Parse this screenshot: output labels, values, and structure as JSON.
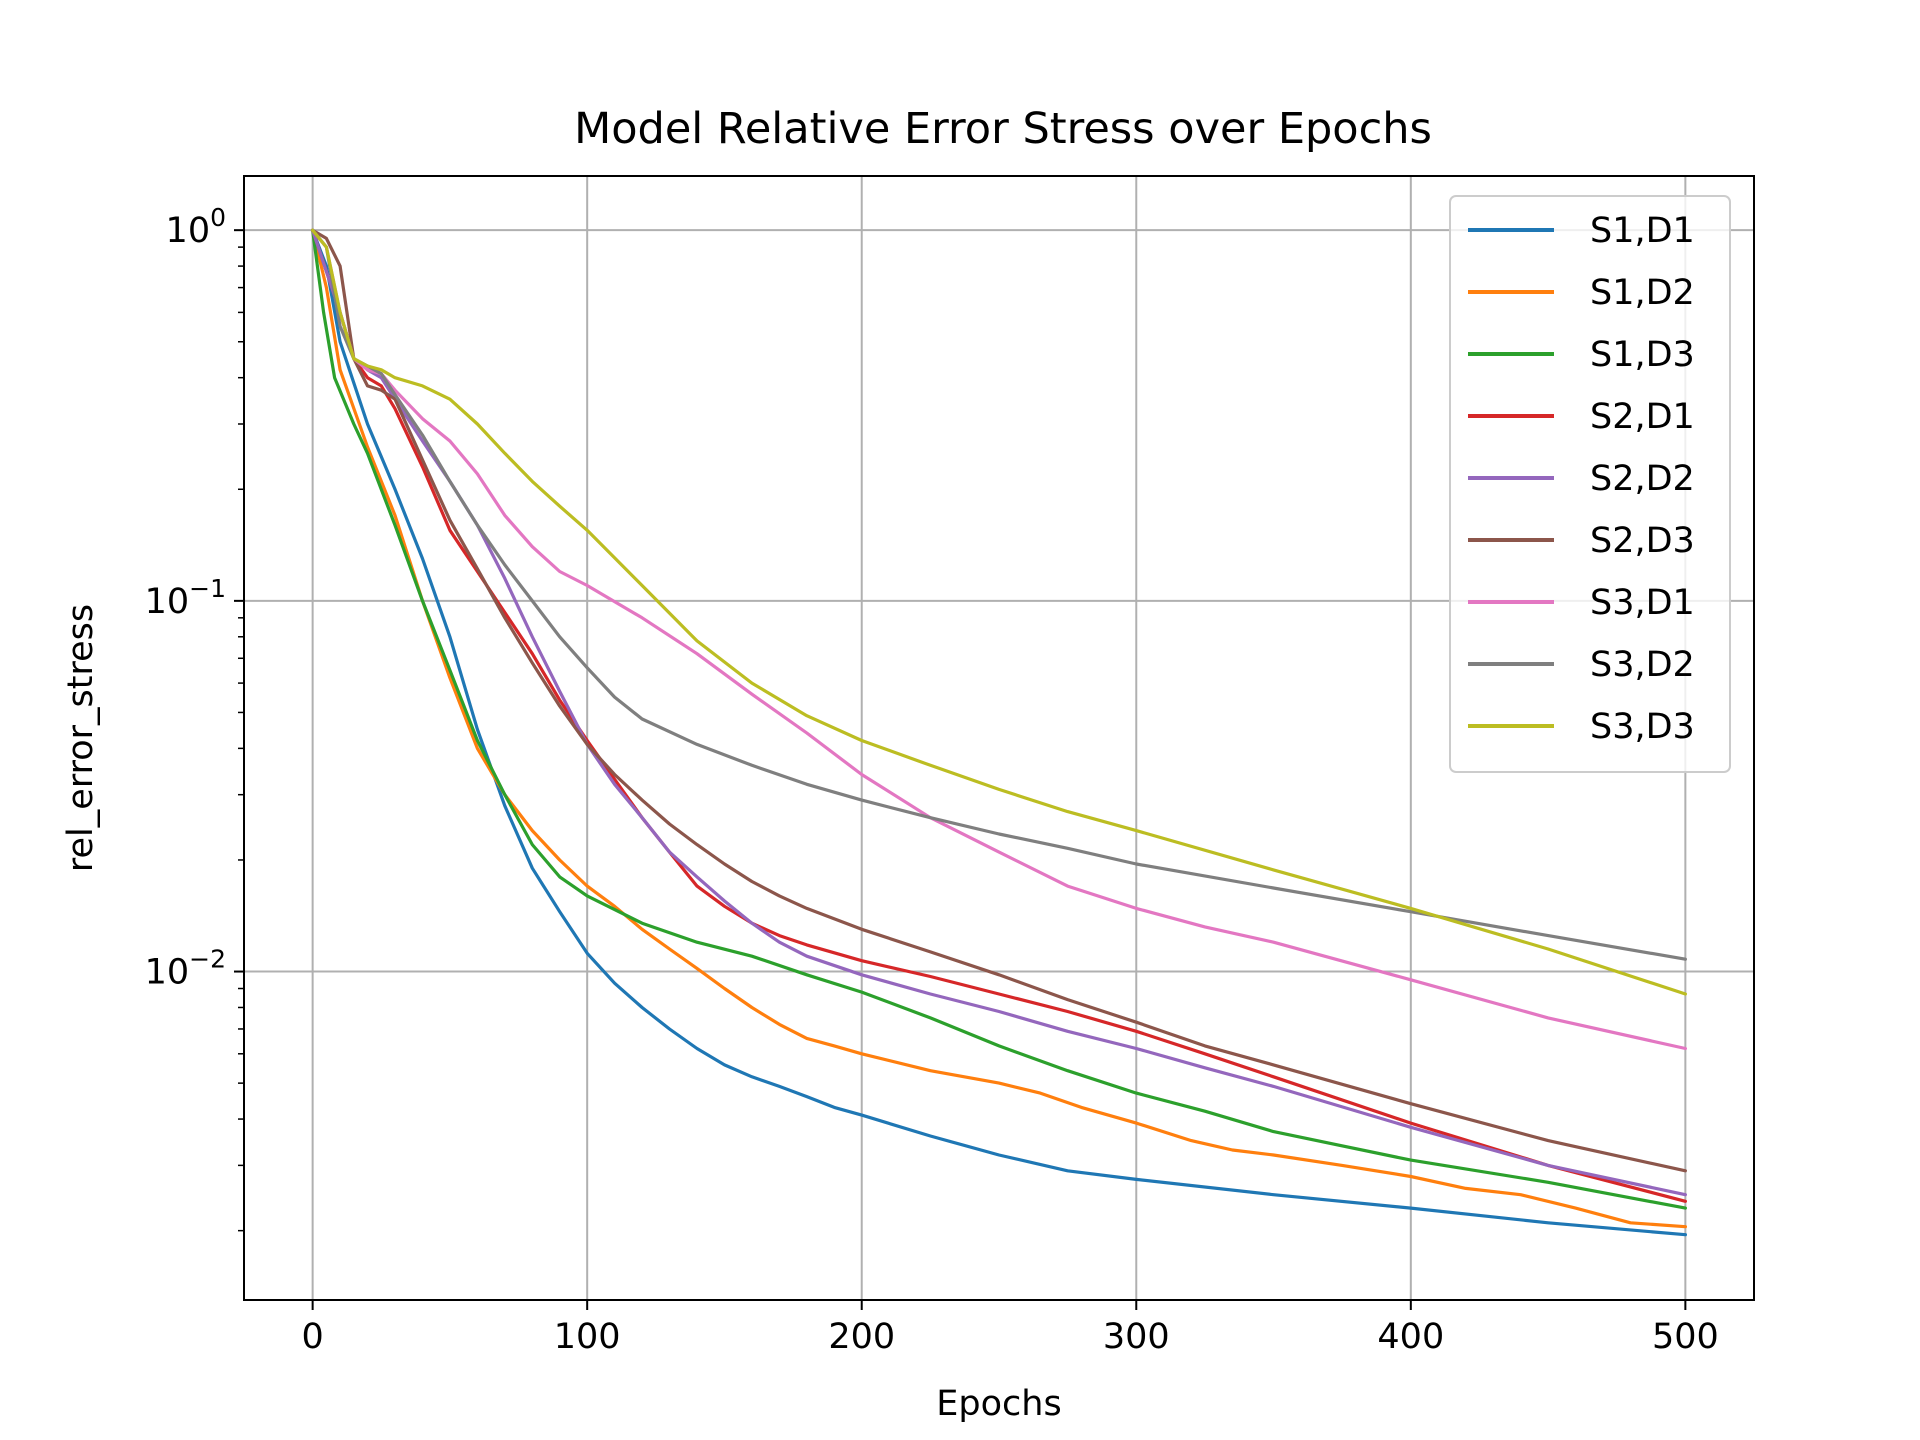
{
  "chart_data": {
    "type": "line",
    "title": "Model Relative Error Stress over Epochs",
    "xlabel": "Epochs",
    "ylabel": "rel_error_stress",
    "xlim": [
      -25,
      525
    ],
    "ylim": [
      0.0013,
      1.4
    ],
    "yscale": "log",
    "xticks": [
      0,
      100,
      200,
      300,
      400,
      500
    ],
    "xtick_labels": [
      "0",
      "100",
      "200",
      "300",
      "400",
      "500"
    ],
    "yticks": [
      {
        "value": 1,
        "base": "10",
        "exp": "0"
      },
      {
        "value": 0.1,
        "base": "10",
        "exp": "−1"
      },
      {
        "value": 0.01,
        "base": "10",
        "exp": "−2"
      }
    ],
    "grid": true,
    "legend_position": "top-right",
    "series": [
      {
        "name": "S1,D1",
        "color": "#1f77b4",
        "points": [
          [
            0,
            1
          ],
          [
            5,
            0.8
          ],
          [
            10,
            0.5
          ],
          [
            20,
            0.3
          ],
          [
            30,
            0.2
          ],
          [
            40,
            0.13
          ],
          [
            50,
            0.08
          ],
          [
            60,
            0.045
          ],
          [
            70,
            0.028
          ],
          [
            80,
            0.019
          ],
          [
            90,
            0.0145
          ],
          [
            100,
            0.0112
          ],
          [
            110,
            0.0093
          ],
          [
            120,
            0.008
          ],
          [
            130,
            0.007
          ],
          [
            140,
            0.0062
          ],
          [
            150,
            0.0056
          ],
          [
            160,
            0.0052
          ],
          [
            170,
            0.0049
          ],
          [
            180,
            0.0046
          ],
          [
            190,
            0.0043
          ],
          [
            200,
            0.0041
          ],
          [
            225,
            0.0036
          ],
          [
            250,
            0.0032
          ],
          [
            275,
            0.0029
          ],
          [
            300,
            0.00275
          ],
          [
            350,
            0.0025
          ],
          [
            400,
            0.0023
          ],
          [
            450,
            0.0021
          ],
          [
            500,
            0.00195
          ]
        ]
      },
      {
        "name": "S1,D2",
        "color": "#ff7f0e",
        "points": [
          [
            0,
            1
          ],
          [
            5,
            0.7
          ],
          [
            10,
            0.42
          ],
          [
            20,
            0.26
          ],
          [
            30,
            0.17
          ],
          [
            40,
            0.1
          ],
          [
            50,
            0.062
          ],
          [
            60,
            0.04
          ],
          [
            70,
            0.03
          ],
          [
            80,
            0.024
          ],
          [
            90,
            0.02
          ],
          [
            100,
            0.017
          ],
          [
            110,
            0.015
          ],
          [
            120,
            0.013
          ],
          [
            130,
            0.0115
          ],
          [
            140,
            0.0102
          ],
          [
            150,
            0.009
          ],
          [
            160,
            0.008
          ],
          [
            170,
            0.0072
          ],
          [
            180,
            0.0066
          ],
          [
            190,
            0.0063
          ],
          [
            200,
            0.006
          ],
          [
            225,
            0.0054
          ],
          [
            250,
            0.005
          ],
          [
            265,
            0.0047
          ],
          [
            280,
            0.0043
          ],
          [
            300,
            0.0039
          ],
          [
            320,
            0.0035
          ],
          [
            335,
            0.0033
          ],
          [
            350,
            0.0032
          ],
          [
            375,
            0.003
          ],
          [
            400,
            0.0028
          ],
          [
            420,
            0.0026
          ],
          [
            440,
            0.0025
          ],
          [
            460,
            0.0023
          ],
          [
            480,
            0.0021
          ],
          [
            500,
            0.00205
          ]
        ]
      },
      {
        "name": "S1,D3",
        "color": "#2ca02c",
        "points": [
          [
            0,
            1
          ],
          [
            4,
            0.6
          ],
          [
            8,
            0.4
          ],
          [
            15,
            0.3
          ],
          [
            20,
            0.25
          ],
          [
            30,
            0.16
          ],
          [
            40,
            0.1
          ],
          [
            50,
            0.065
          ],
          [
            60,
            0.042
          ],
          [
            70,
            0.03
          ],
          [
            80,
            0.022
          ],
          [
            90,
            0.018
          ],
          [
            100,
            0.016
          ],
          [
            120,
            0.0135
          ],
          [
            140,
            0.012
          ],
          [
            160,
            0.011
          ],
          [
            180,
            0.0098
          ],
          [
            200,
            0.0088
          ],
          [
            225,
            0.0075
          ],
          [
            250,
            0.0063
          ],
          [
            275,
            0.0054
          ],
          [
            300,
            0.0047
          ],
          [
            325,
            0.0042
          ],
          [
            350,
            0.0037
          ],
          [
            400,
            0.0031
          ],
          [
            450,
            0.0027
          ],
          [
            500,
            0.0023
          ]
        ]
      },
      {
        "name": "S2,D1",
        "color": "#d62728",
        "points": [
          [
            0,
            1
          ],
          [
            10,
            0.6
          ],
          [
            15,
            0.45
          ],
          [
            20,
            0.4
          ],
          [
            25,
            0.38
          ],
          [
            30,
            0.33
          ],
          [
            40,
            0.23
          ],
          [
            50,
            0.155
          ],
          [
            60,
            0.12
          ],
          [
            70,
            0.093
          ],
          [
            80,
            0.072
          ],
          [
            90,
            0.054
          ],
          [
            100,
            0.042
          ],
          [
            110,
            0.033
          ],
          [
            120,
            0.026
          ],
          [
            130,
            0.021
          ],
          [
            140,
            0.017
          ],
          [
            150,
            0.015
          ],
          [
            160,
            0.0135
          ],
          [
            170,
            0.0125
          ],
          [
            180,
            0.0118
          ],
          [
            200,
            0.0107
          ],
          [
            225,
            0.0097
          ],
          [
            250,
            0.0087
          ],
          [
            275,
            0.0078
          ],
          [
            300,
            0.0069
          ],
          [
            325,
            0.006
          ],
          [
            350,
            0.0052
          ],
          [
            400,
            0.0039
          ],
          [
            450,
            0.003
          ],
          [
            500,
            0.0024
          ]
        ]
      },
      {
        "name": "S2,D2",
        "color": "#9467bd",
        "points": [
          [
            0,
            1
          ],
          [
            10,
            0.6
          ],
          [
            15,
            0.45
          ],
          [
            20,
            0.42
          ],
          [
            25,
            0.4
          ],
          [
            30,
            0.35
          ],
          [
            40,
            0.27
          ],
          [
            50,
            0.21
          ],
          [
            60,
            0.16
          ],
          [
            70,
            0.115
          ],
          [
            80,
            0.08
          ],
          [
            90,
            0.057
          ],
          [
            100,
            0.041
          ],
          [
            110,
            0.032
          ],
          [
            120,
            0.026
          ],
          [
            130,
            0.021
          ],
          [
            140,
            0.018
          ],
          [
            150,
            0.0155
          ],
          [
            160,
            0.0135
          ],
          [
            170,
            0.012
          ],
          [
            180,
            0.011
          ],
          [
            200,
            0.0098
          ],
          [
            225,
            0.0087
          ],
          [
            250,
            0.0078
          ],
          [
            275,
            0.0069
          ],
          [
            300,
            0.0062
          ],
          [
            325,
            0.0055
          ],
          [
            350,
            0.0049
          ],
          [
            400,
            0.0038
          ],
          [
            450,
            0.003
          ],
          [
            500,
            0.0025
          ]
        ]
      },
      {
        "name": "S2,D3",
        "color": "#8c564b",
        "points": [
          [
            0,
            1
          ],
          [
            5,
            0.95
          ],
          [
            10,
            0.8
          ],
          [
            15,
            0.45
          ],
          [
            20,
            0.38
          ],
          [
            25,
            0.37
          ],
          [
            30,
            0.35
          ],
          [
            40,
            0.24
          ],
          [
            50,
            0.165
          ],
          [
            60,
            0.122
          ],
          [
            70,
            0.09
          ],
          [
            80,
            0.068
          ],
          [
            90,
            0.052
          ],
          [
            100,
            0.041
          ],
          [
            110,
            0.034
          ],
          [
            120,
            0.029
          ],
          [
            130,
            0.025
          ],
          [
            140,
            0.022
          ],
          [
            150,
            0.0195
          ],
          [
            160,
            0.0175
          ],
          [
            170,
            0.016
          ],
          [
            180,
            0.0148
          ],
          [
            200,
            0.013
          ],
          [
            225,
            0.0113
          ],
          [
            250,
            0.0098
          ],
          [
            275,
            0.0084
          ],
          [
            300,
            0.0073
          ],
          [
            325,
            0.0063
          ],
          [
            350,
            0.0056
          ],
          [
            400,
            0.0044
          ],
          [
            450,
            0.0035
          ],
          [
            500,
            0.0029
          ]
        ]
      },
      {
        "name": "S3,D1",
        "color": "#e377c2",
        "points": [
          [
            0,
            1
          ],
          [
            5,
            0.9
          ],
          [
            10,
            0.6
          ],
          [
            15,
            0.45
          ],
          [
            20,
            0.42
          ],
          [
            25,
            0.41
          ],
          [
            30,
            0.37
          ],
          [
            40,
            0.31
          ],
          [
            50,
            0.27
          ],
          [
            60,
            0.22
          ],
          [
            70,
            0.17
          ],
          [
            80,
            0.14
          ],
          [
            90,
            0.12
          ],
          [
            100,
            0.11
          ],
          [
            120,
            0.09
          ],
          [
            140,
            0.072
          ],
          [
            160,
            0.056
          ],
          [
            180,
            0.044
          ],
          [
            200,
            0.034
          ],
          [
            225,
            0.026
          ],
          [
            250,
            0.021
          ],
          [
            275,
            0.017
          ],
          [
            300,
            0.0148
          ],
          [
            325,
            0.0132
          ],
          [
            350,
            0.012
          ],
          [
            400,
            0.0095
          ],
          [
            450,
            0.0075
          ],
          [
            500,
            0.0062
          ]
        ]
      },
      {
        "name": "S3,D2",
        "color": "#7f7f7f",
        "points": [
          [
            0,
            1
          ],
          [
            5,
            0.9
          ],
          [
            10,
            0.55
          ],
          [
            15,
            0.45
          ],
          [
            20,
            0.43
          ],
          [
            25,
            0.41
          ],
          [
            30,
            0.36
          ],
          [
            40,
            0.28
          ],
          [
            50,
            0.21
          ],
          [
            60,
            0.16
          ],
          [
            70,
            0.125
          ],
          [
            80,
            0.1
          ],
          [
            90,
            0.08
          ],
          [
            100,
            0.066
          ],
          [
            110,
            0.055
          ],
          [
            120,
            0.048
          ],
          [
            140,
            0.041
          ],
          [
            160,
            0.036
          ],
          [
            180,
            0.032
          ],
          [
            200,
            0.029
          ],
          [
            225,
            0.026
          ],
          [
            250,
            0.0235
          ],
          [
            275,
            0.0215
          ],
          [
            300,
            0.0195
          ],
          [
            350,
            0.0168
          ],
          [
            400,
            0.0145
          ],
          [
            450,
            0.0125
          ],
          [
            500,
            0.0108
          ]
        ]
      },
      {
        "name": "S3,D3",
        "color": "#bcbd22",
        "points": [
          [
            0,
            1
          ],
          [
            5,
            0.9
          ],
          [
            10,
            0.6
          ],
          [
            15,
            0.45
          ],
          [
            20,
            0.43
          ],
          [
            25,
            0.42
          ],
          [
            30,
            0.4
          ],
          [
            40,
            0.38
          ],
          [
            50,
            0.35
          ],
          [
            60,
            0.3
          ],
          [
            70,
            0.25
          ],
          [
            80,
            0.21
          ],
          [
            90,
            0.18
          ],
          [
            100,
            0.155
          ],
          [
            120,
            0.11
          ],
          [
            140,
            0.078
          ],
          [
            160,
            0.06
          ],
          [
            180,
            0.049
          ],
          [
            200,
            0.042
          ],
          [
            225,
            0.036
          ],
          [
            250,
            0.031
          ],
          [
            275,
            0.027
          ],
          [
            300,
            0.024
          ],
          [
            350,
            0.0188
          ],
          [
            400,
            0.0148
          ],
          [
            450,
            0.0115
          ],
          [
            500,
            0.0087
          ]
        ]
      }
    ]
  }
}
